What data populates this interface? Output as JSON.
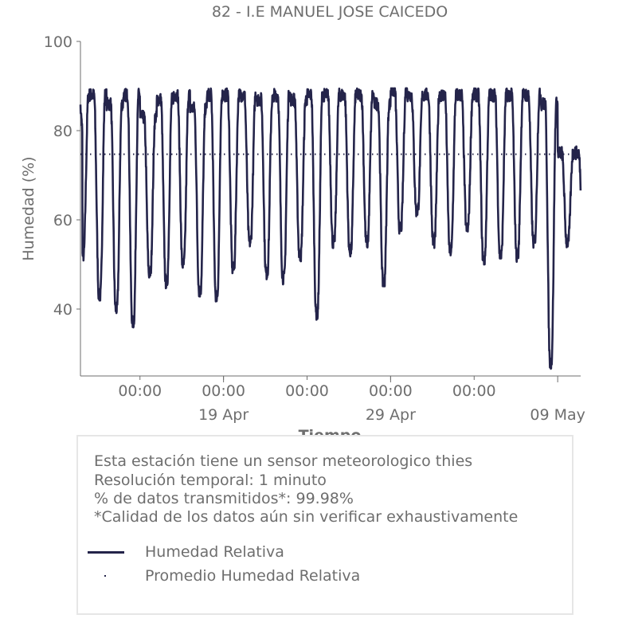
{
  "chart_data": {
    "type": "line",
    "title": "82 - I.E MANUEL JOSE CAICEDO",
    "xlabel": "Tiempo",
    "ylabel": "Humedad (%)",
    "ylim": [
      25,
      100
    ],
    "yticks": [
      40,
      60,
      80,
      100
    ],
    "x_range": [
      "2025-04-10T10:30",
      "2025-05-10T09:00"
    ],
    "x_minor_ticks": [
      "00:00",
      "00:00",
      "00:00",
      "00:00",
      "00:00"
    ],
    "x_major_ticks": [
      "19 Apr",
      "29 Apr",
      "09 May"
    ],
    "line_color": "#24244a",
    "series": [
      {
        "name": "Humedad Relativa",
        "style": "solid",
        "daily_min": [
          52,
          43,
          40,
          37,
          48,
          46,
          50,
          44,
          43,
          49,
          55,
          48,
          47,
          52,
          39,
          55,
          53,
          55,
          46,
          58,
          62,
          55,
          53,
          58,
          51,
          52,
          52,
          55,
          28,
          55
        ],
        "daily_max": [
          88,
          88,
          86,
          88,
          83,
          87,
          88,
          85,
          88,
          88,
          88,
          87,
          88,
          87,
          88,
          88,
          88,
          88,
          86,
          89,
          88,
          88,
          88,
          88,
          88,
          88,
          88,
          88,
          86,
          75
        ]
      },
      {
        "name": "Promedio Humedad Relativa",
        "style": "dotted",
        "value": 74.7
      }
    ],
    "grid": false,
    "legend": "below"
  },
  "info": {
    "line1": "Esta estación tiene un sensor meteorologico thies",
    "line2": "Resolución temporal: 1 minuto",
    "line3": "% de datos transmitidos*: 99.98%",
    "line4": "*Calidad de los datos aún sin verificar exhaustivamente"
  },
  "legend": {
    "item1": "Humedad Relativa",
    "item2": "Promedio Humedad Relativa"
  }
}
